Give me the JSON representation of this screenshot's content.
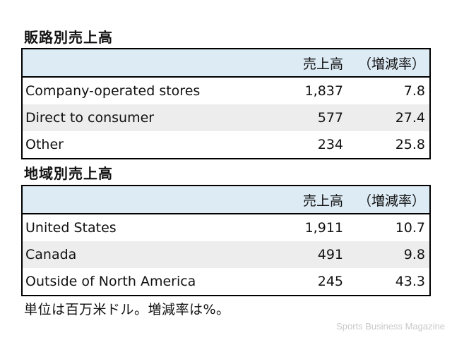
{
  "sections": [
    {
      "title": "販路別売上高",
      "headers": [
        "",
        "売上高",
        "（増減率）"
      ],
      "rows": [
        {
          "name": "Company-operated stores",
          "value": "1,837",
          "rate": "7.8"
        },
        {
          "name": "Direct to consumer",
          "value": "577",
          "rate": "27.4"
        },
        {
          "name": "Other",
          "value": "234",
          "rate": "25.8"
        }
      ]
    },
    {
      "title": "地域別売上高",
      "headers": [
        "",
        "売上高",
        "（増減率）"
      ],
      "rows": [
        {
          "name": "United States",
          "value": "1,911",
          "rate": "10.7"
        },
        {
          "name": "Canada",
          "value": "491",
          "rate": "9.8"
        },
        {
          "name": "Outside of North America",
          "value": "245",
          "rate": "43.3"
        }
      ]
    }
  ],
  "note": "単位は百万米ドル。増減率は%。",
  "watermark": "Sports Business Magazine",
  "colors": {
    "header_bg": "#ddebf5",
    "alt_row_bg": "#ededed",
    "border": "#000000"
  }
}
